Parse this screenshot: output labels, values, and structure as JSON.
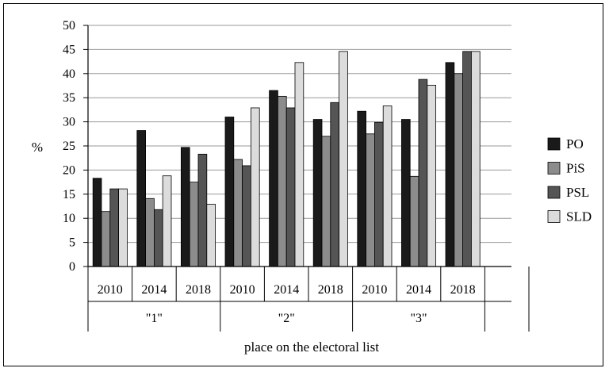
{
  "chart_data": {
    "type": "bar",
    "title": "",
    "ylabel": "%",
    "xlabel": "place on the electoral list",
    "ylim": [
      0,
      50
    ],
    "yticks": [
      0,
      5,
      10,
      15,
      20,
      25,
      30,
      35,
      40,
      45,
      50
    ],
    "grid": true,
    "legend_position": "right",
    "groups": [
      {
        "label": "\"1\"",
        "years": [
          "2010",
          "2014",
          "2018"
        ]
      },
      {
        "label": "\"2\"",
        "years": [
          "2010",
          "2014",
          "2018"
        ]
      },
      {
        "label": "\"3\"",
        "years": [
          "2010",
          "2014",
          "2018"
        ]
      }
    ],
    "categories": [
      "2010",
      "2014",
      "2018",
      "2010",
      "2014",
      "2018",
      "2010",
      "2014",
      "2018"
    ],
    "series": [
      {
        "name": "PO",
        "color": "#1a1a1a",
        "values": [
          18.3,
          28.2,
          24.7,
          31.0,
          36.5,
          30.5,
          32.2,
          30.5,
          42.3
        ]
      },
      {
        "name": "PiS",
        "color": "#8c8c8c",
        "values": [
          11.4,
          14.1,
          17.5,
          22.2,
          35.3,
          27.0,
          27.5,
          18.7,
          40.0
        ]
      },
      {
        "name": "PSL",
        "color": "#555555",
        "values": [
          16.1,
          11.8,
          23.3,
          20.9,
          32.9,
          34.0,
          29.9,
          38.8,
          44.6
        ]
      },
      {
        "name": "SLD",
        "color": "#dcdcdc",
        "values": [
          16.1,
          18.8,
          12.9,
          32.9,
          42.3,
          44.6,
          33.3,
          37.6,
          44.6
        ]
      }
    ]
  }
}
